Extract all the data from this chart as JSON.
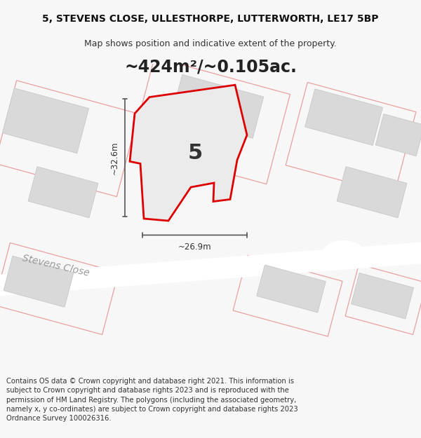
{
  "title_line1": "5, STEVENS CLOSE, ULLESTHORPE, LUTTERWORTH, LE17 5BP",
  "title_line2": "Map shows position and indicative extent of the property.",
  "area_label": "~424m²/~0.105ac.",
  "plot_number": "5",
  "dim_width": "~26.9m",
  "dim_height": "~32.6m",
  "street_label": "Stevens Close",
  "footer_text": "Contains OS data © Crown copyright and database right 2021. This information is subject to Crown copyright and database rights 2023 and is reproduced with the permission of HM Land Registry. The polygons (including the associated geometry, namely x, y co-ordinates) are subject to Crown copyright and database rights 2023 Ordnance Survey 100026316.",
  "bg_color": "#f7f7f7",
  "map_bg": "#efefef",
  "plot_edge_color": "#dd0000",
  "building_fill": "#d9d9d9",
  "building_edge": "#c8c8c8",
  "light_red": "#e8a0a0",
  "road_color": "#ffffff",
  "dim_color": "#555555",
  "title_fontsize": 10,
  "subtitle_fontsize": 9,
  "area_fontsize": 18,
  "number_fontsize": 20,
  "footer_fontsize": 7.2,
  "street_fontsize": 10
}
